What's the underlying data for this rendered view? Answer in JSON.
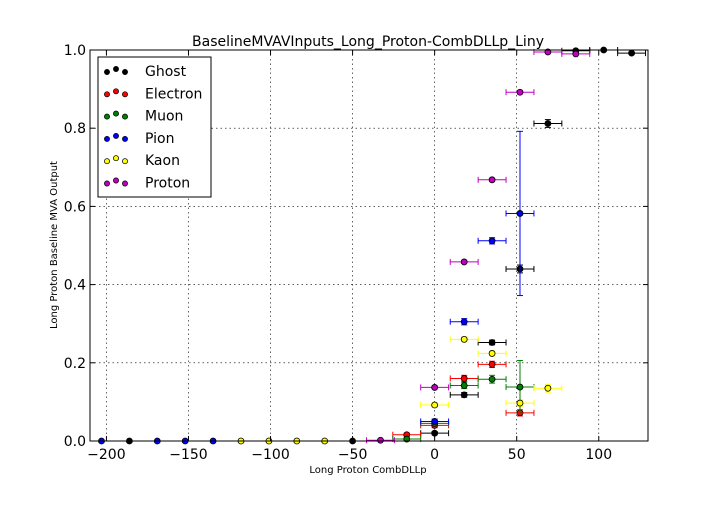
{
  "chart_data": {
    "type": "scatter",
    "title": "BaselineMVAVInputs_Long_Proton-CombDLLp_Liny",
    "xlabel": "Long Proton CombDLLp",
    "ylabel": "Long Proton Baseline MVA Output",
    "xlim": [
      -210,
      130
    ],
    "ylim": [
      0,
      1.0
    ],
    "xticks": [
      -200,
      -150,
      -100,
      -50,
      0,
      50,
      100
    ],
    "yticks": [
      0.0,
      0.2,
      0.4,
      0.6,
      0.8,
      1.0
    ],
    "xtick_labels": [
      "−200",
      "−150",
      "−100",
      "−50",
      "0",
      "50",
      "100"
    ],
    "ytick_labels": [
      "0.0",
      "0.2",
      "0.4",
      "0.6",
      "0.8",
      "1.0"
    ],
    "grid": true,
    "legend_position": "top-left",
    "series": [
      {
        "name": "Ghost",
        "color": "#000000",
        "points": [
          {
            "x": 0,
            "y": 0.02,
            "xerr": 8.5,
            "yerr": 0.004
          },
          {
            "x": 18,
            "y": 0.118,
            "xerr": 8.5,
            "yerr": 0.006
          },
          {
            "x": 35,
            "y": 0.252,
            "xerr": 8.5,
            "yerr": 0.006
          },
          {
            "x": 52,
            "y": 0.44,
            "xerr": 8.5,
            "yerr": 0.01
          },
          {
            "x": 69,
            "y": 0.812,
            "xerr": 8.5,
            "yerr": 0.01
          },
          {
            "x": 86,
            "y": 0.998,
            "xerr": 8.5,
            "yerr": 0.003
          },
          {
            "x": 103,
            "y": 1.0,
            "xerr": 8.5,
            "yerr": 0.002
          },
          {
            "x": 120,
            "y": 0.992,
            "xerr": 8.5,
            "yerr": 0.003
          }
        ]
      },
      {
        "name": "Electron",
        "color": "#ff0000",
        "points": [
          {
            "x": -17,
            "y": 0.016,
            "xerr": 8.5,
            "yerr": 0.004
          },
          {
            "x": 0,
            "y": 0.04,
            "xerr": 8.5,
            "yerr": 0.006
          },
          {
            "x": 18,
            "y": 0.16,
            "xerr": 8.5,
            "yerr": 0.008
          },
          {
            "x": 35,
            "y": 0.196,
            "xerr": 8.5,
            "yerr": 0.008
          },
          {
            "x": 52,
            "y": 0.072,
            "xerr": 8.5,
            "yerr": 0.008
          }
        ]
      },
      {
        "name": "Muon",
        "color": "#007f00",
        "points": [
          {
            "x": -17,
            "y": 0.005,
            "xerr": 8.5,
            "yerr": 0.003
          },
          {
            "x": 0,
            "y": 0.045,
            "xerr": 8.5,
            "yerr": 0.006
          },
          {
            "x": 18,
            "y": 0.142,
            "xerr": 8.5,
            "yerr": 0.008
          },
          {
            "x": 35,
            "y": 0.158,
            "xerr": 8.5,
            "yerr": 0.01
          },
          {
            "x": 52,
            "y": 0.138,
            "xerr": 8.5,
            "yerr": 0.068
          }
        ]
      },
      {
        "name": "Pion",
        "color": "#0000ff",
        "points": [
          {
            "x": -203,
            "y": 0.0,
            "xerr": 0,
            "yerr": 0
          },
          {
            "x": -169,
            "y": 0.0,
            "xerr": 0,
            "yerr": 0
          },
          {
            "x": -152,
            "y": 0.0,
            "xerr": 0,
            "yerr": 0
          },
          {
            "x": -135,
            "y": 0.0,
            "xerr": 0,
            "yerr": 0
          },
          {
            "x": 0,
            "y": 0.05,
            "xerr": 8.5,
            "yerr": 0.006
          },
          {
            "x": 18,
            "y": 0.305,
            "xerr": 8.5,
            "yerr": 0.008
          },
          {
            "x": 35,
            "y": 0.512,
            "xerr": 8.5,
            "yerr": 0.008
          },
          {
            "x": 52,
            "y": 0.582,
            "xerr": 8.5,
            "yerr": 0.21
          }
        ]
      },
      {
        "name": "Kaon",
        "color": "#ffff00",
        "points": [
          {
            "x": -118,
            "y": 0.0,
            "xerr": 0,
            "yerr": 0
          },
          {
            "x": -101,
            "y": 0.0,
            "xerr": 0,
            "yerr": 0
          },
          {
            "x": -84,
            "y": 0.0,
            "xerr": 0,
            "yerr": 0
          },
          {
            "x": -67,
            "y": 0.0,
            "xerr": 0,
            "yerr": 0
          },
          {
            "x": 0,
            "y": 0.092,
            "xerr": 8.5,
            "yerr": 0.006
          },
          {
            "x": 18,
            "y": 0.26,
            "xerr": 8.5,
            "yerr": 0.006
          },
          {
            "x": 35,
            "y": 0.224,
            "xerr": 8.5,
            "yerr": 0.006
          },
          {
            "x": 52,
            "y": 0.097,
            "xerr": 8.5,
            "yerr": 0.008
          },
          {
            "x": 69,
            "y": 0.135,
            "xerr": 8.5,
            "yerr": 0.01
          }
        ]
      },
      {
        "name": "Proton",
        "color": "#bf00bf",
        "points": [
          {
            "x": -33,
            "y": 0.002,
            "xerr": 8.5,
            "yerr": 0.002
          },
          {
            "x": 0,
            "y": 0.137,
            "xerr": 8.5,
            "yerr": 0.004
          },
          {
            "x": 18,
            "y": 0.458,
            "xerr": 8.5,
            "yerr": 0.004
          },
          {
            "x": 35,
            "y": 0.668,
            "xerr": 8.5,
            "yerr": 0.004
          },
          {
            "x": 52,
            "y": 0.892,
            "xerr": 8.5,
            "yerr": 0.004
          },
          {
            "x": 69,
            "y": 0.995,
            "xerr": 8.5,
            "yerr": 0.002
          },
          {
            "x": 86,
            "y": 0.99,
            "xerr": 8.5,
            "yerr": 0.002
          }
        ]
      },
      {
        "name": "",
        "color": "#000000",
        "legend": false,
        "points": [
          {
            "x": -186,
            "y": 0.0,
            "xerr": 0,
            "yerr": 0
          },
          {
            "x": -50,
            "y": 0.0,
            "xerr": 0,
            "yerr": 0
          }
        ]
      }
    ]
  }
}
